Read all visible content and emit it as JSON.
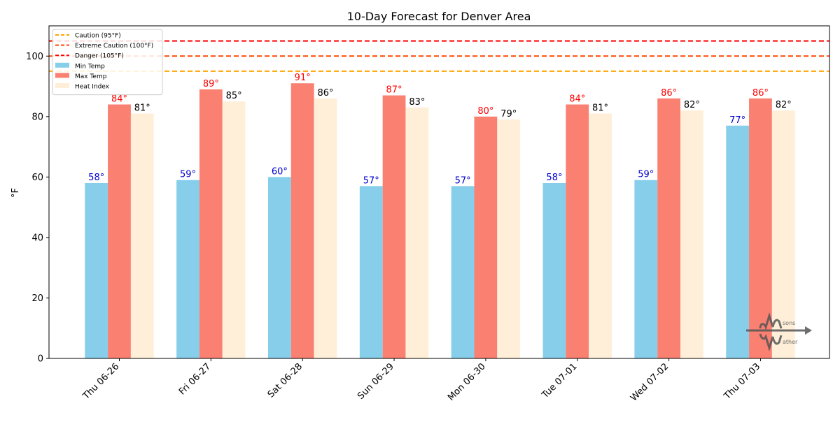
{
  "chart_data": {
    "type": "bar",
    "title": "10-Day Forecast for Denver Area",
    "xlabel": "",
    "ylabel": "°F",
    "ylim": [
      0,
      110
    ],
    "yticks": [
      0,
      20,
      40,
      60,
      80,
      100
    ],
    "grid": false,
    "legend_position": "top-left",
    "degree_suffix": "°",
    "categories": [
      "Thu 06-26",
      "Fri 06-27",
      "Sat 06-28",
      "Sun 06-29",
      "Mon 06-30",
      "Tue 07-01",
      "Wed 07-02",
      "Thu 07-03"
    ],
    "series": [
      {
        "name": "Min Temp",
        "values": [
          58,
          59,
          60,
          57,
          57,
          58,
          59,
          77
        ],
        "color": "#87ceeb",
        "label_color": "#0000cc"
      },
      {
        "name": "Max Temp",
        "values": [
          84,
          89,
          91,
          87,
          80,
          84,
          86,
          86
        ],
        "color": "#fa8072",
        "label_color": "#ff0000"
      },
      {
        "name": "Heat Index",
        "values": [
          81,
          85,
          86,
          83,
          79,
          81,
          82,
          82
        ],
        "color": "#ffefd9",
        "label_color": "#000000"
      }
    ],
    "reference_lines": [
      {
        "name": "Caution (95°F)",
        "value": 95,
        "color": "#ffa500"
      },
      {
        "name": "Extreme Caution (100°F)",
        "value": 100,
        "color": "#ff4500"
      },
      {
        "name": "Danger (105°F)",
        "value": 105,
        "color": "#ff0000"
      }
    ],
    "logo_text": [
      "sons",
      "ather"
    ]
  }
}
